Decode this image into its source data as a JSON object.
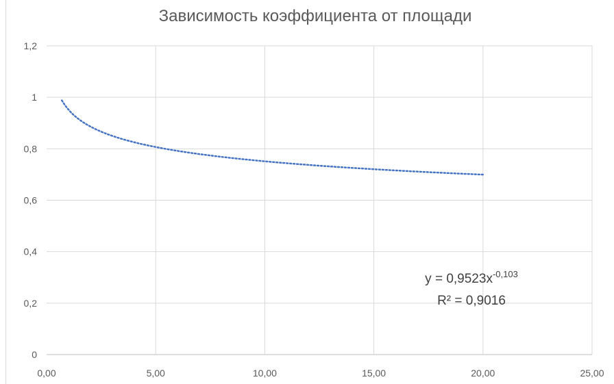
{
  "chart_data": {
    "type": "scatter",
    "title": "Зависимость коэффициента от площади",
    "xlabel": "",
    "ylabel": "",
    "xlim": [
      0,
      25
    ],
    "ylim": [
      0,
      1.2
    ],
    "x_ticks": [
      0,
      5,
      10,
      15,
      20,
      25
    ],
    "x_tick_labels": [
      "0,00",
      "5,00",
      "10,00",
      "15,00",
      "20,00",
      "25,00"
    ],
    "y_ticks": [
      0,
      0.2,
      0.4,
      0.6,
      0.8,
      1,
      1.2
    ],
    "y_tick_labels": [
      "0",
      "0,2",
      "0,4",
      "0,6",
      "0,8",
      "1",
      "1,2"
    ],
    "grid": true,
    "trendline": {
      "type": "power",
      "coefficient": 0.9523,
      "exponent": -0.103,
      "x_range": [
        0.7,
        20
      ],
      "color": "#4472c4",
      "style": "dotted",
      "equation_prefix": "y = 0,9523x",
      "equation_exponent": "-0,103",
      "r_squared_text": "R² = 0,9016"
    }
  }
}
